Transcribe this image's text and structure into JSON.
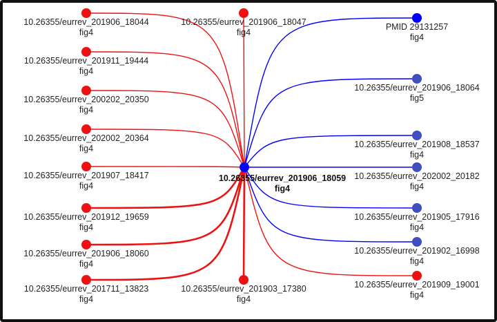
{
  "colors": {
    "red": "#ee1111",
    "blue": "#0000ff",
    "blue_node": "#3f4fbf",
    "text": "#222222"
  },
  "center": {
    "id": "10.26355/eurrev_201906_18059",
    "sub": "fig4"
  },
  "nodes": [
    {
      "id": "10.26355/eurrev_201906_18044",
      "sub": "fig4",
      "color": "red"
    },
    {
      "id": "10.26355/eurrev_201906_18047",
      "sub": "fig4",
      "color": "red"
    },
    {
      "id": "PMID 29131257",
      "sub": "fig4",
      "color": "blue"
    },
    {
      "id": "10.26355/eurrev_201911_19444",
      "sub": "fig4",
      "color": "red"
    },
    {
      "id": "10.26355/eurrev_201906_18064",
      "sub": "fig5",
      "color": "blue"
    },
    {
      "id": "10.26355/eurrev_200202_20350",
      "sub": "fig4",
      "color": "red"
    },
    {
      "id": "10.26355/eurrev_202002_20364",
      "sub": "fig4",
      "color": "red"
    },
    {
      "id": "10.26355/eurrev_201908_18537",
      "sub": "fig4",
      "color": "blue"
    },
    {
      "id": "10.26355/eurrev_201907_18417",
      "sub": "fig4",
      "color": "red"
    },
    {
      "id": "10.26355/eurrev_202002_20182",
      "sub": "fig4",
      "color": "blue"
    },
    {
      "id": "10.26355/eurrev_201912_19659",
      "sub": "fig4",
      "color": "red"
    },
    {
      "id": "10.26355/eurrev_201905_17916",
      "sub": "fig4",
      "color": "blue"
    },
    {
      "id": "10.26355/eurrev_201906_18060",
      "sub": "fig4",
      "color": "red"
    },
    {
      "id": "10.26355/eurrev_201902_16998",
      "sub": "fig4",
      "color": "blue"
    },
    {
      "id": "10.26355/eurrev_201711_13823",
      "sub": "fig4",
      "color": "red"
    },
    {
      "id": "10.26355/eurrev_201903_17380",
      "sub": "fig4",
      "color": "red"
    },
    {
      "id": "10.26355/eurrev_201909_19001",
      "sub": "fig4",
      "color": "red"
    }
  ],
  "edges": [
    {
      "node": 0,
      "color": "red"
    },
    {
      "node": 1,
      "color": "red"
    },
    {
      "node": 2,
      "color": "blue"
    },
    {
      "node": 3,
      "color": "red"
    },
    {
      "node": 4,
      "color": "blue"
    },
    {
      "node": 5,
      "color": "red"
    },
    {
      "node": 6,
      "color": "red"
    },
    {
      "node": 7,
      "color": "blue"
    },
    {
      "node": 8,
      "color": "red"
    },
    {
      "node": 9,
      "color": "blue"
    },
    {
      "node": 10,
      "color": "red",
      "weight": "heavy"
    },
    {
      "node": 11,
      "color": "blue"
    },
    {
      "node": 12,
      "color": "red",
      "weight": "heavy"
    },
    {
      "node": 13,
      "color": "blue"
    },
    {
      "node": 14,
      "color": "red",
      "weight": "heavy"
    },
    {
      "node": 15,
      "color": "red",
      "weight": "heavy"
    },
    {
      "node": 16,
      "color": "red"
    }
  ]
}
